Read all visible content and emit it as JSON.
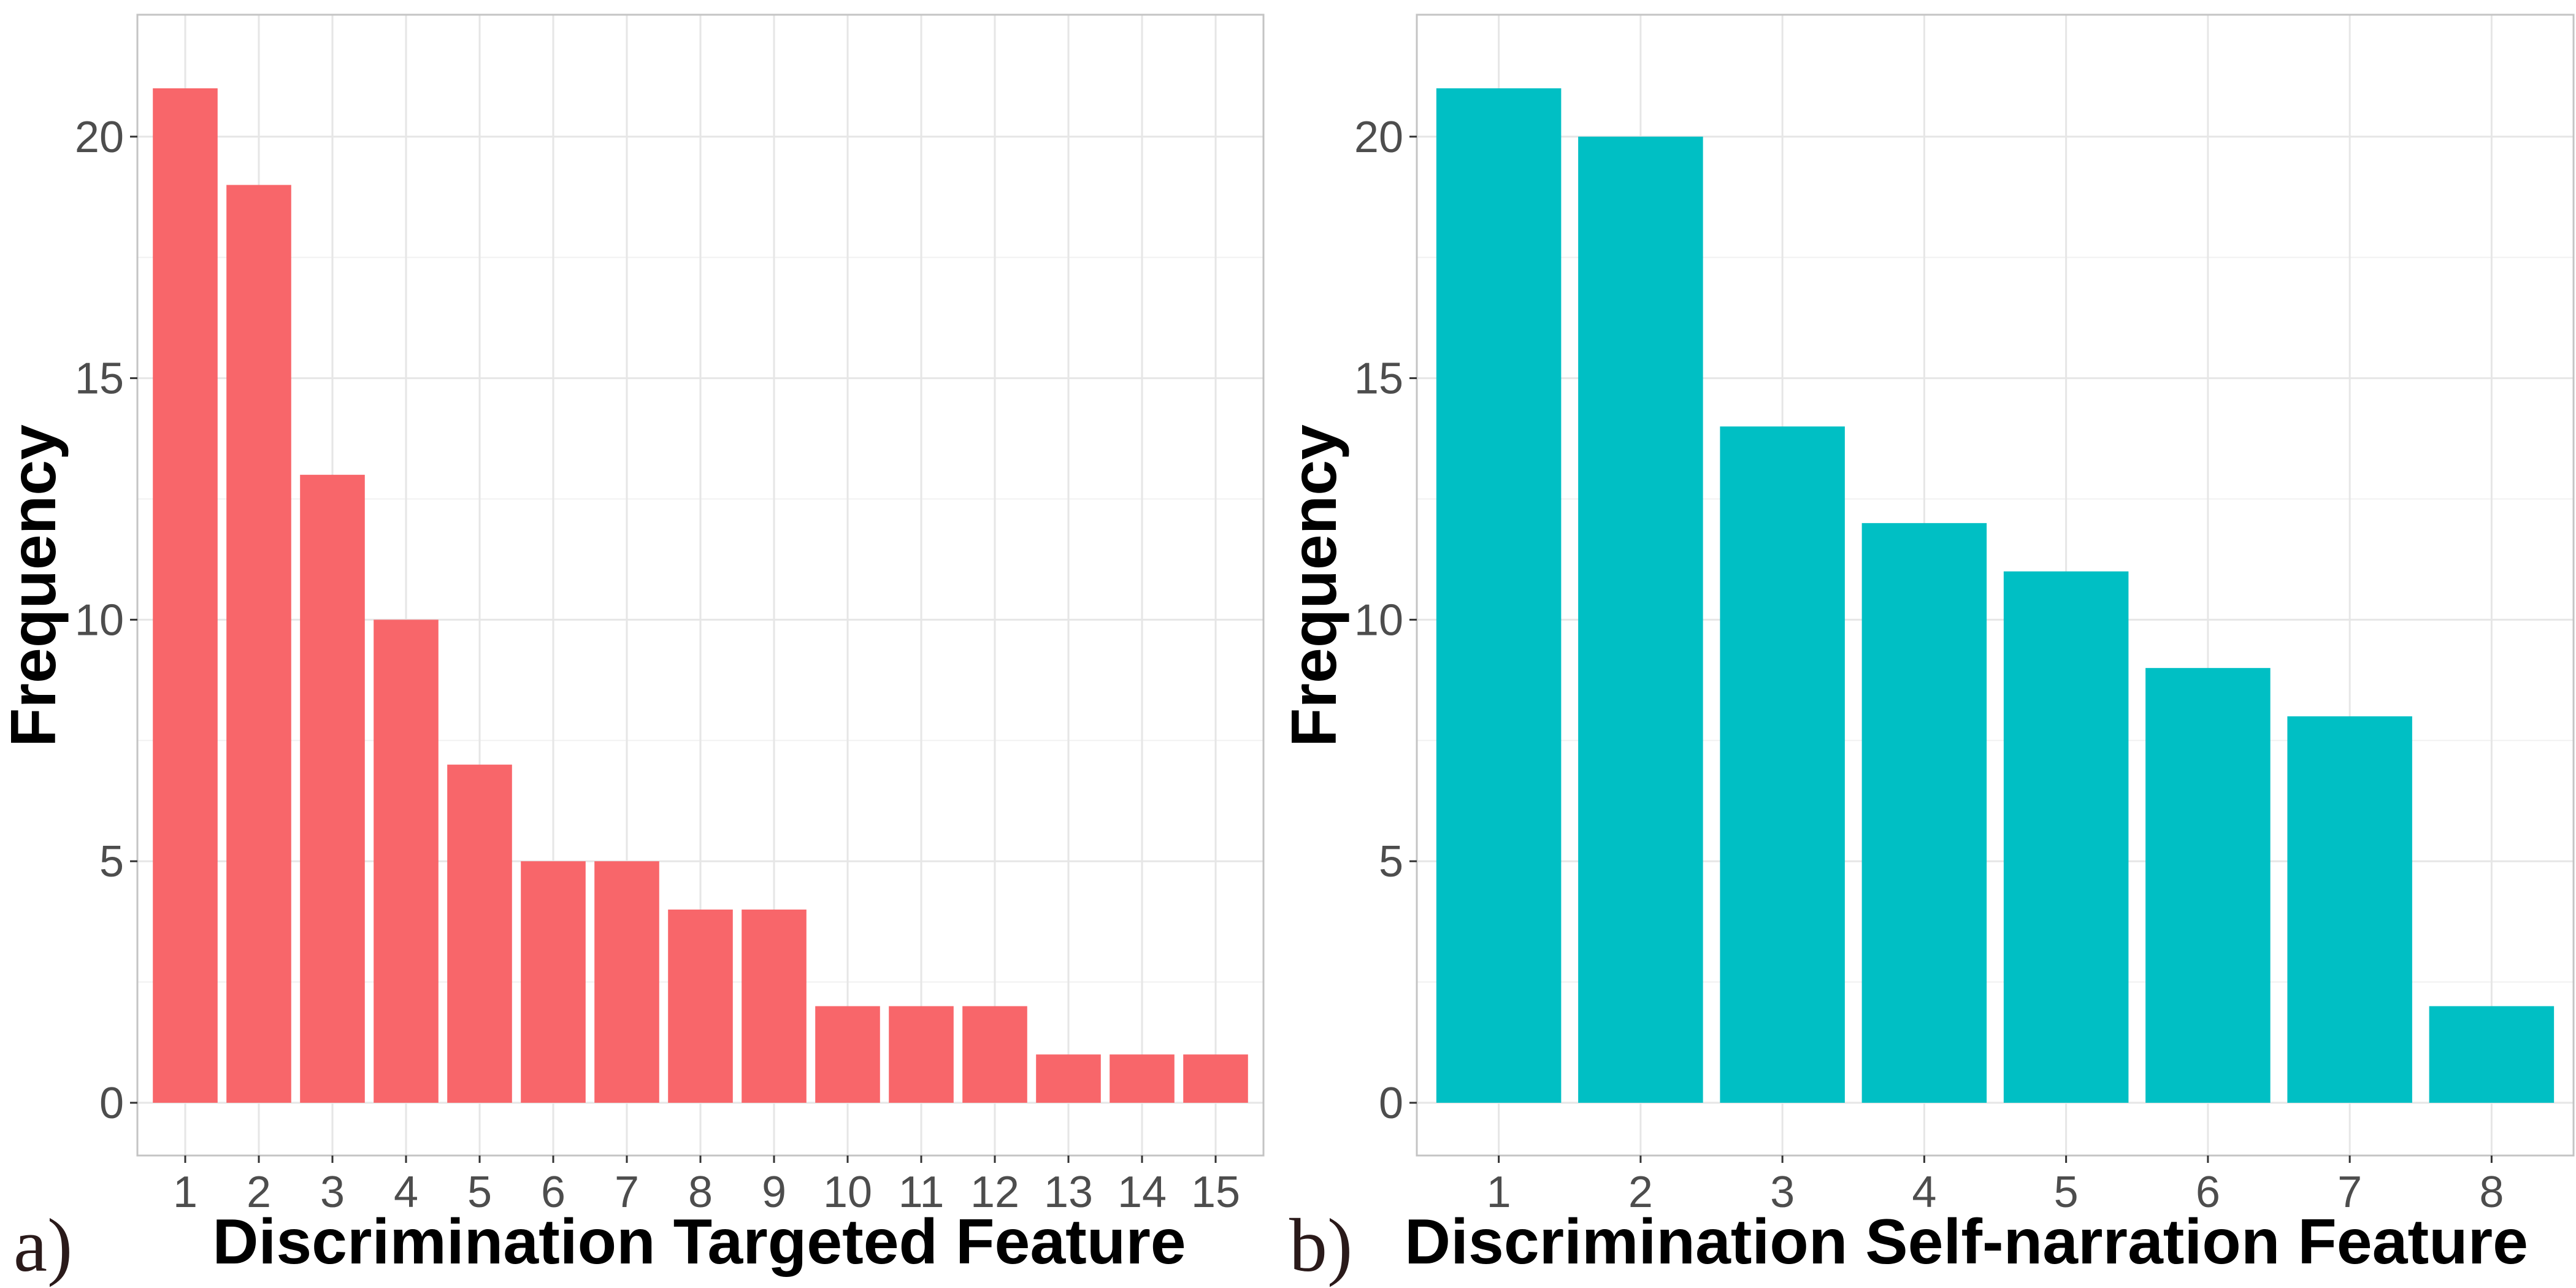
{
  "colors": {
    "left_series": "#F8666A",
    "right_series": "#00BFC4",
    "background": "#FFFFFF",
    "grid": "#E6E6E6"
  },
  "chart_data": [
    {
      "type": "bar",
      "panel_label": "a)",
      "xlabel": "Discrimination Targeted Feature",
      "ylabel": "Frequency",
      "categories": [
        "1",
        "2",
        "3",
        "4",
        "5",
        "6",
        "7",
        "8",
        "9",
        "10",
        "11",
        "12",
        "13",
        "14",
        "15"
      ],
      "values": [
        21,
        19,
        13,
        10,
        7,
        5,
        5,
        4,
        4,
        2,
        2,
        2,
        1,
        1,
        1
      ],
      "ylim": [
        0,
        22
      ],
      "yticks": [
        0,
        5,
        10,
        15,
        20
      ],
      "grid": true,
      "color": "#F8666A"
    },
    {
      "type": "bar",
      "panel_label": "b)",
      "xlabel": "Discrimination Self-narration Feature",
      "ylabel": "Frequency",
      "categories": [
        "1",
        "2",
        "3",
        "4",
        "5",
        "6",
        "7",
        "8"
      ],
      "values": [
        21,
        20,
        14,
        12,
        11,
        9,
        8,
        2
      ],
      "ylim": [
        0,
        22
      ],
      "yticks": [
        0,
        5,
        10,
        15,
        20
      ],
      "grid": true,
      "color": "#00BFC4"
    }
  ]
}
